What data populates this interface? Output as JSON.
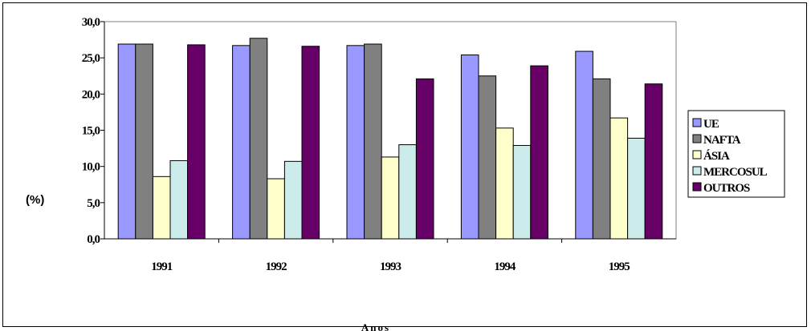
{
  "chart_data": {
    "type": "bar",
    "title": "",
    "xlabel": "Anos",
    "ylabel": "(%)",
    "ylim": [
      0,
      30
    ],
    "yticks": [
      "30,0",
      "25,0",
      "20,0",
      "15,0",
      "10,0",
      "5,0",
      "0,0"
    ],
    "categories": [
      "1991",
      "1992",
      "1993",
      "1994",
      "1995"
    ],
    "series": [
      {
        "name": "UE",
        "color": "#9999ff",
        "values": [
          26.9,
          26.7,
          26.7,
          25.4,
          25.9
        ]
      },
      {
        "name": "NAFTA",
        "color": "#808080",
        "values": [
          26.9,
          27.7,
          26.9,
          22.5,
          22.1
        ]
      },
      {
        "name": "ÁSIA",
        "color": "#ffffcc",
        "values": [
          8.6,
          8.3,
          11.3,
          15.3,
          16.7
        ]
      },
      {
        "name": "MERCOSUL",
        "color": "#ccecec",
        "values": [
          10.8,
          10.7,
          13.0,
          12.9,
          13.9
        ]
      },
      {
        "name": "OUTROS",
        "color": "#660066",
        "values": [
          26.8,
          26.6,
          22.1,
          23.9,
          21.4
        ]
      }
    ],
    "legend": "right",
    "grid": false
  }
}
